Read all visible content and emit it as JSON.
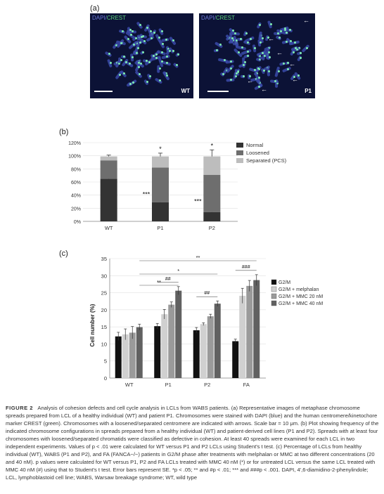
{
  "panel_a": {
    "label": "(a)",
    "left": {
      "stain_dapi": "DAPI",
      "stain_sep": "/",
      "stain_crest": "CREST",
      "corner": "WT"
    },
    "right": {
      "stain_dapi": "DAPI",
      "stain_sep": "/",
      "stain_crest": "CREST",
      "corner": "P1"
    }
  },
  "panel_b": {
    "label": "(b)"
  },
  "panel_c": {
    "label": "(c)"
  },
  "chart_data": [
    {
      "type": "bar",
      "stacked": true,
      "categories": [
        "WT",
        "P1",
        "P2"
      ],
      "ylim": [
        0,
        120
      ],
      "yticks": [
        "0%",
        "20%",
        "40%",
        "60%",
        "80%",
        "100%",
        "120%"
      ],
      "series": [
        {
          "name": "Normal",
          "color": "#333333",
          "values": [
            65,
            29,
            14
          ],
          "errors": [
            1,
            6,
            10
          ]
        },
        {
          "name": "Loosened",
          "color": "#6e6e6e",
          "values": [
            28,
            53,
            57
          ],
          "errors": [
            0,
            0,
            0
          ]
        },
        {
          "name": "Separated (PCS)",
          "color": "#bdbdbd",
          "values": [
            6,
            17,
            28
          ],
          "errors": [
            2,
            5,
            10
          ]
        }
      ],
      "annotations": [
        {
          "category": "P1",
          "series": "Normal",
          "text": "***"
        },
        {
          "category": "P1",
          "series": "Separated (PCS)",
          "text": "*"
        },
        {
          "category": "P2",
          "series": "Normal",
          "text": "***"
        },
        {
          "category": "P2",
          "series": "Separated (PCS)",
          "text": "*"
        }
      ],
      "legend_position": "top-right",
      "grid": true
    },
    {
      "type": "bar",
      "categories": [
        "WT",
        "P1",
        "P2",
        "FA"
      ],
      "ylabel": "Cell number (%)",
      "ylim": [
        0,
        35
      ],
      "yticks": [
        "0",
        "5",
        "10",
        "15",
        "20",
        "25",
        "30",
        "35"
      ],
      "series": [
        {
          "name": "G2/M",
          "color": "#111111",
          "values": [
            12.2,
            15.2,
            14.0,
            10.8
          ],
          "errors": [
            1.2,
            0.8,
            0.8,
            0.6
          ]
        },
        {
          "name": "G2/M + melphalan",
          "color": "#d0d0d0",
          "values": [
            12.8,
            18.7,
            15.8,
            24.1
          ],
          "errors": [
            1.6,
            1.4,
            0.4,
            2.2
          ]
        },
        {
          "name": "G2/M + MMC 20 nM",
          "color": "#9a9a9a",
          "values": [
            13.3,
            21.5,
            18.1,
            27.0
          ],
          "errors": [
            1.8,
            0.8,
            0.6,
            1.6
          ]
        },
        {
          "name": "G2/M + MMC 40 nM",
          "color": "#616161",
          "values": [
            14.9,
            25.6,
            21.8,
            28.7
          ],
          "errors": [
            0.9,
            1.2,
            0.8,
            1.6
          ]
        }
      ],
      "significance": [
        {
          "from": "WT",
          "to": "FA",
          "text": "**"
        },
        {
          "from": "WT",
          "to": "P2",
          "text": "*"
        },
        {
          "from": "WT",
          "to": "P1",
          "text": "**"
        },
        {
          "within": "P1",
          "text": "##"
        },
        {
          "within": "P2",
          "text": "##"
        },
        {
          "within": "FA",
          "text": "###"
        }
      ],
      "legend_position": "top-right",
      "grid": true
    }
  ],
  "caption": {
    "figure": "FIGURE 2",
    "text": "Analysis of cohesion defects and cell cycle analysis in LCLs from WABS patients. (a) Representative images of metaphase chromosome spreads prepared from LCL of a healthy individual (WT) and patient P1. Chromosomes were stained with DAPI (blue) and the human centromere/kinetochore marker CREST (green). Chromosomes with a loosened/separated centromere are indicated with arrows. Scale bar = 10 μm. (b) Plot showing frequency of the indicated chromosome configurations in spreads prepared from a healthy individual (WT) and patient-derived cell lines (P1 and P2). Spreads with at least four chromosomes with loosened/separated chromatids were classified as defective in cohesion. At least 40 spreads were examined for each LCL in two independent experiments. Values of p < .01 were calculated for WT versus P1 and P2 LCLs using Student's t test. (c) Percentage of LCLs from healthy individual (WT), WABS (P1 and P2), and FA (FANCA−/−) patients in G2/M phase after treatments with melphalan or MMC at two different concentrations (20 and 40 nM). p values were calculated for WT versus P1, P2 and FA LCLs treated with MMC 40 nM (*) or for untreated LCL versus the same LCL treated with MMC 40 nM (#) using that to Student's t test. Error bars represent SE. *p < .05; ** and #p < .01; *** and ###p < .001. DAPI, 4′,6-diamidino-2-phenylindole; LCL, lymphoblastoid cell line; WABS, Warsaw breakage syndrome; WT, wild type"
  }
}
